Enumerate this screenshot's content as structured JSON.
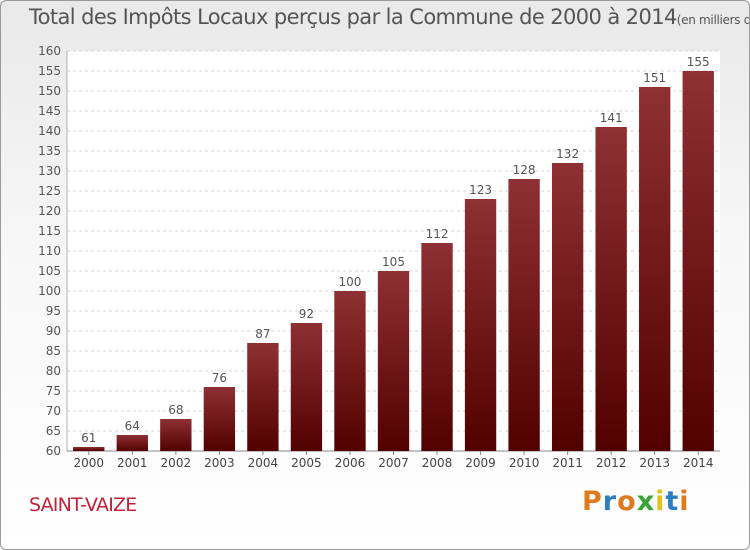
{
  "title": "Total des Impôts Locaux perçus par la Commune de 2000 à 2014",
  "unit": "(en milliers d'€)",
  "commune": "SAINT-VAIZE",
  "brand": "Proxiti",
  "colors": {
    "bar_top": "#8e3034",
    "bar_bottom": "#520000",
    "brand": [
      "#e07a1f",
      "#2b7fc4",
      "#e07a1f",
      "#3aa336",
      "#e4c21b",
      "#2b7fc4",
      "#e07a1f"
    ]
  },
  "chart_data": {
    "type": "bar",
    "categories": [
      "2000",
      "2001",
      "2002",
      "2003",
      "2004",
      "2005",
      "2006",
      "2007",
      "2008",
      "2009",
      "2010",
      "2011",
      "2012",
      "2013",
      "2014"
    ],
    "values": [
      61,
      64,
      68,
      76,
      87,
      92,
      100,
      105,
      112,
      123,
      128,
      132,
      141,
      151,
      155
    ],
    "ylim": [
      60,
      160
    ],
    "yticks": [
      60,
      65,
      70,
      75,
      80,
      85,
      90,
      95,
      100,
      105,
      110,
      115,
      120,
      125,
      130,
      135,
      140,
      145,
      150,
      155,
      160
    ],
    "grid": true,
    "xlabel": "",
    "ylabel": ""
  }
}
